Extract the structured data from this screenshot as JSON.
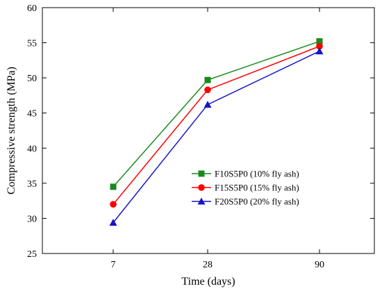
{
  "chart_data": {
    "type": "line",
    "x": [
      "7",
      "28",
      "90"
    ],
    "xlabel": "Time (days)",
    "ylabel": "Compressive strength (MPa)",
    "ylim": [
      25,
      60
    ],
    "yticks": [
      25,
      30,
      35,
      40,
      45,
      50,
      55,
      60
    ],
    "grid": false,
    "legend_position": "center-right",
    "series": [
      {
        "name": "F10S5P0 (10% fly ash)",
        "values": [
          34.5,
          49.7,
          55.2
        ],
        "color": "#1a8a1a",
        "marker": "square"
      },
      {
        "name": "F15S5P0 (15% fly ash)",
        "values": [
          32.0,
          48.3,
          54.5
        ],
        "color": "#ff0000",
        "marker": "circle"
      },
      {
        "name": "F20S5P0 (20% fly ash)",
        "values": [
          29.4,
          46.2,
          53.8
        ],
        "color": "#1515c8",
        "marker": "triangle"
      }
    ]
  }
}
